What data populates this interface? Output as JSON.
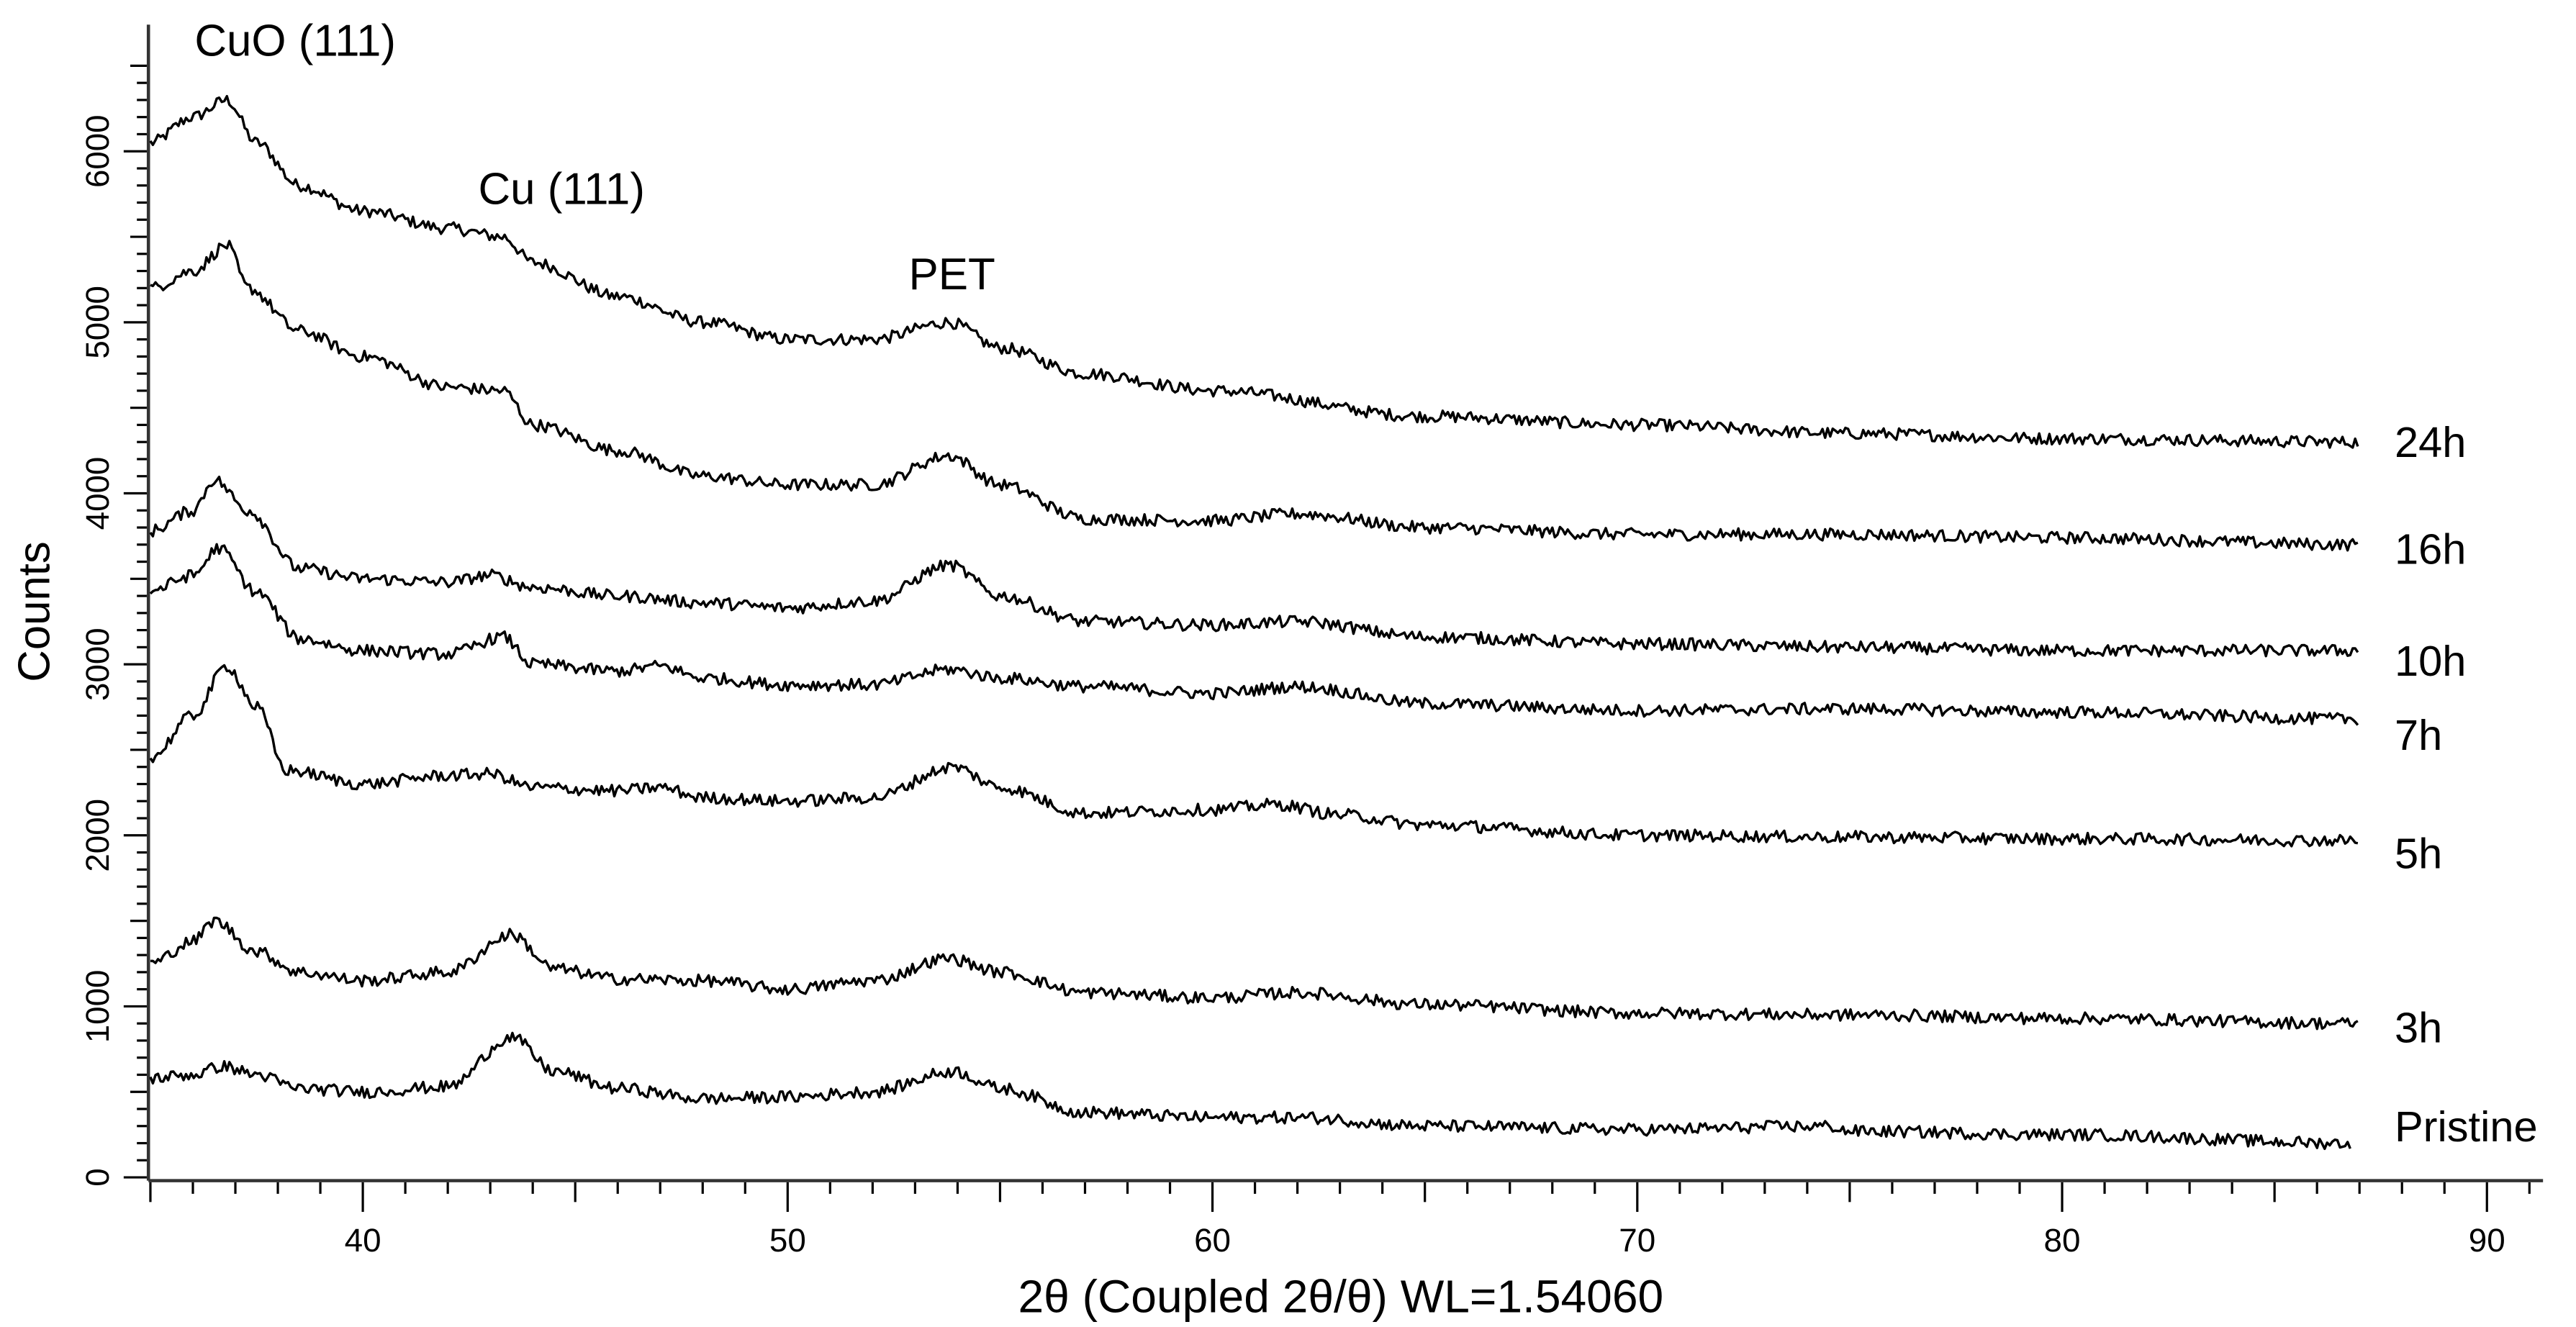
{
  "chart_data": {
    "type": "line",
    "title": "",
    "xlabel": "2θ (Coupled 2θ/θ) WL=1.54060",
    "ylabel": "Counts",
    "xlim": [
      35,
      91
    ],
    "ylim": [
      0,
      6500
    ],
    "x_ticks": [
      40,
      50,
      60,
      70,
      80,
      90
    ],
    "y_ticks": [
      0,
      1000,
      2000,
      3000,
      4000,
      5000,
      6000
    ],
    "grid": false,
    "legend_position": "inline-right",
    "annotations": [
      {
        "text": "CuO (111)",
        "x": 36.7,
        "y": 6300
      },
      {
        "text": "Cu (111)",
        "x": 43.4,
        "y": 5500
      },
      {
        "text": "PET",
        "x": 53.9,
        "y": 5000
      }
    ],
    "series": [
      {
        "name": "24h",
        "points": [
          [
            35,
            6050
          ],
          [
            36,
            6200
          ],
          [
            36.8,
            6300
          ],
          [
            37.5,
            6050
          ],
          [
            38.5,
            5800
          ],
          [
            40,
            5650
          ],
          [
            42,
            5550
          ],
          [
            43.3,
            5500
          ],
          [
            44,
            5350
          ],
          [
            46,
            5150
          ],
          [
            48,
            5000
          ],
          [
            50,
            4900
          ],
          [
            52,
            4900
          ],
          [
            53.8,
            5000
          ],
          [
            55,
            4850
          ],
          [
            57,
            4700
          ],
          [
            60,
            4600
          ],
          [
            65,
            4450
          ],
          [
            70,
            4400
          ],
          [
            75,
            4350
          ],
          [
            80,
            4320
          ],
          [
            87,
            4300
          ]
        ]
      },
      {
        "name": "16h",
        "points": [
          [
            35,
            5200
          ],
          [
            36,
            5300
          ],
          [
            36.8,
            5450
          ],
          [
            37.3,
            5200
          ],
          [
            38.5,
            4950
          ],
          [
            40,
            4800
          ],
          [
            42,
            4620
          ],
          [
            43.3,
            4600
          ],
          [
            44,
            4400
          ],
          [
            46,
            4250
          ],
          [
            48,
            4100
          ],
          [
            50,
            4050
          ],
          [
            52,
            4050
          ],
          [
            53.8,
            4220
          ],
          [
            55,
            4050
          ],
          [
            57,
            3850
          ],
          [
            60,
            3840
          ],
          [
            62,
            3880
          ],
          [
            65,
            3800
          ],
          [
            70,
            3760
          ],
          [
            75,
            3760
          ],
          [
            80,
            3740
          ],
          [
            87,
            3700
          ]
        ]
      },
      {
        "name": "10h",
        "points": [
          [
            35,
            3780
          ],
          [
            36,
            3900
          ],
          [
            36.5,
            4080
          ],
          [
            37.3,
            3900
          ],
          [
            38.5,
            3560
          ],
          [
            40,
            3500
          ],
          [
            42,
            3480
          ],
          [
            43,
            3520
          ],
          [
            44,
            3450
          ],
          [
            46,
            3400
          ],
          [
            48,
            3360
          ],
          [
            50,
            3330
          ],
          [
            52,
            3370
          ],
          [
            53.8,
            3580
          ],
          [
            55,
            3400
          ],
          [
            57,
            3250
          ],
          [
            60,
            3230
          ],
          [
            62,
            3250
          ],
          [
            65,
            3160
          ],
          [
            70,
            3120
          ],
          [
            75,
            3100
          ],
          [
            80,
            3080
          ],
          [
            87,
            3080
          ]
        ]
      },
      {
        "name": "7h",
        "points": [
          [
            35,
            3430
          ],
          [
            36,
            3520
          ],
          [
            36.6,
            3680
          ],
          [
            37.5,
            3420
          ],
          [
            38.5,
            3150
          ],
          [
            40,
            3080
          ],
          [
            42,
            3060
          ],
          [
            43.3,
            3160
          ],
          [
            44,
            3000
          ],
          [
            46,
            2960
          ],
          [
            47,
            2990
          ],
          [
            48,
            2920
          ],
          [
            50,
            2880
          ],
          [
            52,
            2880
          ],
          [
            53.8,
            2970
          ],
          [
            55,
            2920
          ],
          [
            57,
            2870
          ],
          [
            60,
            2830
          ],
          [
            62,
            2870
          ],
          [
            65,
            2770
          ],
          [
            70,
            2730
          ],
          [
            75,
            2740
          ],
          [
            80,
            2720
          ],
          [
            87,
            2680
          ]
        ]
      },
      {
        "name": "5h",
        "points": [
          [
            35,
            2450
          ],
          [
            36,
            2700
          ],
          [
            36.8,
            2990
          ],
          [
            37.5,
            2750
          ],
          [
            38.2,
            2380
          ],
          [
            40,
            2300
          ],
          [
            42,
            2350
          ],
          [
            43,
            2360
          ],
          [
            44,
            2280
          ],
          [
            46,
            2260
          ],
          [
            47,
            2280
          ],
          [
            48,
            2220
          ],
          [
            50,
            2200
          ],
          [
            52,
            2220
          ],
          [
            53.9,
            2400
          ],
          [
            55,
            2280
          ],
          [
            57,
            2130
          ],
          [
            60,
            2150
          ],
          [
            61.5,
            2180
          ],
          [
            63,
            2120
          ],
          [
            65,
            2060
          ],
          [
            70,
            2000
          ],
          [
            75,
            1990
          ],
          [
            80,
            1980
          ],
          [
            87,
            1970
          ]
        ]
      },
      {
        "name": "3h",
        "points": [
          [
            35,
            1250
          ],
          [
            36,
            1380
          ],
          [
            36.5,
            1500
          ],
          [
            37.5,
            1320
          ],
          [
            38.5,
            1200
          ],
          [
            40,
            1150
          ],
          [
            42,
            1200
          ],
          [
            43.5,
            1420
          ],
          [
            44.5,
            1220
          ],
          [
            46,
            1160
          ],
          [
            48,
            1150
          ],
          [
            50,
            1100
          ],
          [
            52,
            1150
          ],
          [
            53.8,
            1280
          ],
          [
            55,
            1200
          ],
          [
            57,
            1080
          ],
          [
            60,
            1050
          ],
          [
            62,
            1080
          ],
          [
            65,
            1010
          ],
          [
            70,
            960
          ],
          [
            75,
            950
          ],
          [
            80,
            930
          ],
          [
            87,
            900
          ]
        ]
      },
      {
        "name": "Pristine",
        "points": [
          [
            35,
            580
          ],
          [
            36,
            600
          ],
          [
            36.7,
            650
          ],
          [
            37.5,
            600
          ],
          [
            38.5,
            520
          ],
          [
            40,
            500
          ],
          [
            42,
            530
          ],
          [
            43.5,
            820
          ],
          [
            44.5,
            620
          ],
          [
            46,
            520
          ],
          [
            48,
            460
          ],
          [
            50,
            470
          ],
          [
            52,
            500
          ],
          [
            53.9,
            620
          ],
          [
            55,
            520
          ],
          [
            57,
            380
          ],
          [
            60,
            350
          ],
          [
            62,
            350
          ],
          [
            65,
            300
          ],
          [
            70,
            280
          ],
          [
            74.5,
            300
          ],
          [
            75,
            270
          ],
          [
            80,
            250
          ],
          [
            86.8,
            200
          ]
        ]
      }
    ]
  },
  "axes": {
    "xlabel": "2θ (Coupled 2θ/θ) WL=1.54060",
    "ylabel": "Counts"
  },
  "annotations": {
    "cuo": "CuO (111)",
    "cu": "Cu (111)",
    "pet": "PET"
  },
  "series_labels": {
    "s24h": "24h",
    "s16h": "16h",
    "s10h": "10h",
    "s7h": "7h",
    "s5h": "5h",
    "s3h": "3h",
    "pristine": "Pristine"
  },
  "label_positions": [
    {
      "key": "s24h",
      "y": 268
    },
    {
      "key": "s16h",
      "y": 333
    },
    {
      "key": "s10h",
      "y": 402
    },
    {
      "key": "s7h",
      "y": 447
    },
    {
      "key": "s5h",
      "y": 519
    },
    {
      "key": "s3h",
      "y": 624
    },
    {
      "key": "pristine",
      "y": 685
    }
  ]
}
